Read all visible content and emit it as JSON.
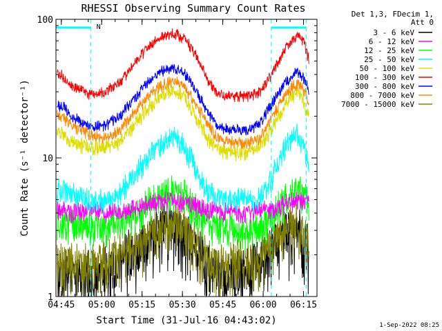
{
  "chart_data": {
    "type": "line",
    "title": "RHESSI Observing Summary Count Rates",
    "xlabel": "Start Time (31-Jul-16 04:43:02)",
    "ylabel": "Count Rate (s⁻¹ detector⁻¹)",
    "y_scale": "log",
    "ylim": [
      1,
      100
    ],
    "xlim_minutes": [
      0,
      97
    ],
    "x_ticks": [
      {
        "label": "04:45",
        "minutes": 2
      },
      {
        "label": "05:00",
        "minutes": 17
      },
      {
        "label": "05:15",
        "minutes": 32
      },
      {
        "label": "05:30",
        "minutes": 47
      },
      {
        "label": "05:45",
        "minutes": 62
      },
      {
        "label": "06:00",
        "minutes": 77
      },
      {
        "label": "06:15",
        "minutes": 92
      }
    ],
    "y_ticks": [
      {
        "label": "1",
        "value": 1
      },
      {
        "label": "10",
        "value": 10
      },
      {
        "label": "100",
        "value": 100
      }
    ],
    "legend_header": [
      "Det 1,3, FDecim 1,",
      "Att 0"
    ],
    "legend_placement": "right",
    "series": [
      {
        "name": "3 - 6 keV",
        "color": "#000000"
      },
      {
        "name": "6 - 12 keV",
        "color": "#ff00ff"
      },
      {
        "name": "12 - 25 keV",
        "color": "#00ff00"
      },
      {
        "name": "25 - 50 keV",
        "color": "#00ffff"
      },
      {
        "name": "50 - 100 keV",
        "color": "#dddd00"
      },
      {
        "name": "100 - 300 keV",
        "color": "#ff0000"
      },
      {
        "name": "300 - 800 keV",
        "color": "#0000ff"
      },
      {
        "name": "800 - 7000 keV",
        "color": "#ff8800"
      },
      {
        "name": "7000 - 15000 keV",
        "color": "#808000"
      }
    ],
    "profiles": {
      "x_minutes": [
        2,
        6,
        12,
        18,
        24,
        30,
        36,
        40,
        44,
        48,
        52,
        56,
        60,
        64,
        68,
        72,
        76,
        80,
        84,
        88,
        90,
        92,
        94
      ],
      "100 - 300 keV": [
        40,
        33,
        29,
        30,
        35,
        50,
        68,
        76,
        79,
        72,
        55,
        38,
        29,
        28,
        28,
        28,
        30,
        40,
        55,
        72,
        78,
        70,
        50
      ],
      "300 - 800 keV": [
        24,
        20,
        17,
        17,
        20,
        28,
        38,
        43,
        45,
        40,
        30,
        22,
        17,
        16,
        16,
        16,
        18,
        24,
        32,
        40,
        42,
        38,
        30
      ],
      "800 - 7000 keV": [
        20,
        17,
        15,
        14,
        16,
        22,
        30,
        34,
        36,
        32,
        24,
        18,
        14,
        13,
        13,
        13,
        14,
        19,
        26,
        33,
        35,
        31,
        25
      ],
      "50 - 100 keV": [
        15,
        13,
        12,
        12,
        13,
        18,
        25,
        29,
        31,
        27,
        20,
        14,
        12,
        11,
        11,
        11,
        12,
        16,
        22,
        28,
        30,
        26,
        19
      ],
      "25 - 50 keV": [
        6,
        5.5,
        5,
        5,
        5.5,
        8,
        11,
        13,
        14,
        12,
        8,
        6,
        5,
        5,
        5,
        5,
        5.2,
        7,
        11,
        14,
        15,
        12,
        9
      ],
      "12 - 25 keV": [
        3.4,
        3.3,
        3.2,
        3.2,
        3.4,
        4,
        5,
        5.5,
        5.8,
        5.3,
        4.2,
        3.5,
        3.2,
        3.1,
        3.1,
        3.1,
        3.2,
        3.8,
        4.8,
        5.6,
        5.8,
        5.3,
        4.5
      ],
      "6 - 12 keV": [
        4.2,
        4.1,
        4.1,
        4.1,
        4.2,
        4.4,
        4.7,
        4.9,
        5,
        4.8,
        4.5,
        4.2,
        4.1,
        4.1,
        4.1,
        4.1,
        4.1,
        4.3,
        4.6,
        4.9,
        5,
        4.8,
        4.6
      ],
      "3 - 6 keV": [
        1.5,
        1.4,
        1.4,
        1.5,
        1.8,
        2.2,
        2.7,
        3.1,
        3.2,
        2.8,
        2.2,
        1.6,
        1.4,
        1.4,
        1.5,
        1.5,
        1.7,
        2.1,
        2.6,
        3,
        3.1,
        2.7,
        2.1
      ],
      "7000 - 15000 keV": [
        1.8,
        1.8,
        1.7,
        1.8,
        2,
        2.3,
        2.8,
        3.3,
        3.5,
        3.1,
        2.4,
        1.9,
        1.7,
        1.7,
        1.8,
        1.8,
        2,
        2.4,
        2.9,
        3.3,
        3.4,
        3,
        2.4
      ]
    },
    "saa_markers": [
      {
        "minutes": 0,
        "label": ""
      },
      {
        "minutes": 13,
        "label": "N"
      },
      {
        "minutes": 80,
        "label": ""
      },
      {
        "minutes": 93,
        "label": ""
      }
    ],
    "grid": false
  },
  "footer": {
    "timestamp": "1-Sep-2022 08:25"
  }
}
